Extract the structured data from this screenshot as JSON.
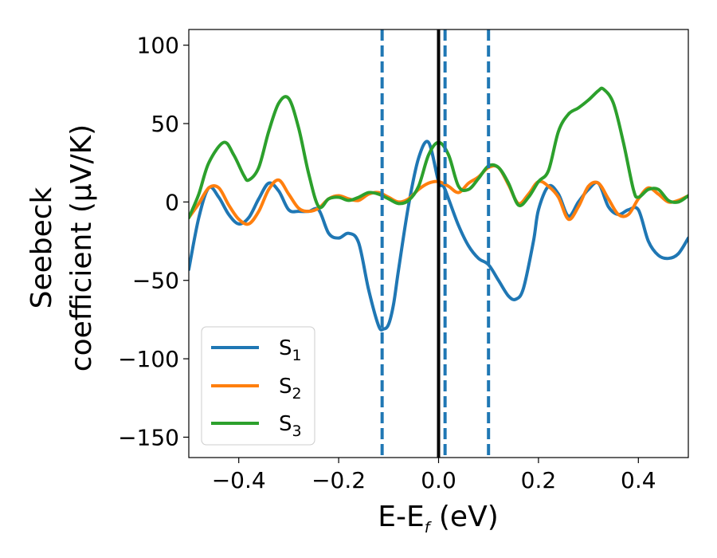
{
  "chart_data": {
    "type": "line",
    "xlabel_main": "E-E",
    "xlabel_sub": "f",
    "xlabel_unit": " (eV)",
    "ylabel_line1": "Seebeck",
    "ylabel_line2": "coefficient  (μV/K)",
    "xlim": [
      -0.5,
      0.5
    ],
    "ylim": [
      -163,
      110
    ],
    "xticks": [
      -0.4,
      -0.2,
      0.0,
      0.2,
      0.4
    ],
    "xtick_labels": [
      "−0.4",
      "−0.2",
      "0.0",
      "0.2",
      "0.4"
    ],
    "yticks": [
      100,
      50,
      0,
      -50,
      -100,
      -150
    ],
    "ytick_labels": [
      "100",
      "50",
      "0",
      "−50",
      "−100",
      "−150"
    ],
    "legend_position": "lower-left",
    "series": [
      {
        "name": "S",
        "subscript": "1",
        "color": "#1f77b4",
        "x": [
          -0.5,
          -0.48,
          -0.46,
          -0.44,
          -0.42,
          -0.4,
          -0.38,
          -0.36,
          -0.34,
          -0.32,
          -0.3,
          -0.28,
          -0.26,
          -0.24,
          -0.22,
          -0.2,
          -0.18,
          -0.16,
          -0.14,
          -0.12,
          -0.11,
          -0.1,
          -0.09,
          -0.08,
          -0.06,
          -0.04,
          -0.02,
          0.0,
          0.01,
          0.02,
          0.04,
          0.06,
          0.08,
          0.1,
          0.12,
          0.14,
          0.155,
          0.17,
          0.19,
          0.2,
          0.22,
          0.24,
          0.26,
          0.28,
          0.3,
          0.32,
          0.34,
          0.36,
          0.38,
          0.4,
          0.42,
          0.44,
          0.46,
          0.48,
          0.5
        ],
        "y": [
          -43,
          -10,
          9,
          3,
          -8,
          -14,
          -10,
          2,
          12,
          7,
          -5,
          -6,
          -6,
          -5,
          -20,
          -23,
          -20,
          -26,
          -56,
          -79,
          -81,
          -78,
          -65,
          -43,
          -2,
          28,
          38,
          13,
          10,
          2,
          -15,
          -28,
          -36,
          -40,
          -50,
          -60,
          -62,
          -55,
          -25,
          -5,
          10,
          5,
          -9,
          0,
          8,
          12,
          -3,
          -8,
          -5,
          -5,
          -25,
          -34,
          -36,
          -33,
          -23
        ]
      },
      {
        "name": "S",
        "subscript": "2",
        "color": "#ff7f0e",
        "x": [
          -0.5,
          -0.48,
          -0.46,
          -0.44,
          -0.42,
          -0.4,
          -0.38,
          -0.36,
          -0.34,
          -0.32,
          -0.3,
          -0.28,
          -0.26,
          -0.24,
          -0.22,
          -0.2,
          -0.18,
          -0.16,
          -0.14,
          -0.12,
          -0.1,
          -0.08,
          -0.06,
          -0.04,
          -0.02,
          0.0,
          0.02,
          0.04,
          0.06,
          0.08,
          0.1,
          0.12,
          0.14,
          0.16,
          0.18,
          0.2,
          0.22,
          0.24,
          0.26,
          0.28,
          0.3,
          0.32,
          0.34,
          0.36,
          0.38,
          0.4,
          0.42,
          0.44,
          0.46,
          0.48,
          0.5
        ],
        "y": [
          -10,
          -1,
          9,
          9,
          -2,
          -11,
          -14,
          -6,
          8,
          14,
          5,
          -4,
          -6,
          -4,
          2,
          4,
          2,
          1,
          5,
          6,
          3,
          0,
          2,
          8,
          12,
          13,
          10,
          6,
          12,
          16,
          22,
          22,
          11,
          -1,
          5,
          13,
          10,
          3,
          -11,
          -3,
          10,
          12,
          2,
          -8,
          -8,
          2,
          9,
          5,
          0,
          1,
          4
        ]
      },
      {
        "name": "S",
        "subscript": "3",
        "color": "#2ca02c",
        "x": [
          -0.5,
          -0.48,
          -0.46,
          -0.43,
          -0.41,
          -0.39,
          -0.38,
          -0.36,
          -0.34,
          -0.32,
          -0.3,
          -0.28,
          -0.26,
          -0.24,
          -0.22,
          -0.2,
          -0.18,
          -0.16,
          -0.14,
          -0.12,
          -0.1,
          -0.08,
          -0.06,
          -0.04,
          -0.02,
          0.0,
          0.02,
          0.04,
          0.06,
          0.08,
          0.1,
          0.12,
          0.14,
          0.16,
          0.18,
          0.2,
          0.22,
          0.24,
          0.26,
          0.28,
          0.3,
          0.32,
          0.33,
          0.35,
          0.37,
          0.39,
          0.4,
          0.42,
          0.44,
          0.46,
          0.48,
          0.5
        ],
        "y": [
          -10,
          5,
          25,
          38,
          30,
          17,
          14,
          22,
          45,
          63,
          66,
          47,
          18,
          -3,
          2,
          3,
          1,
          3,
          6,
          5,
          2,
          -1,
          1,
          10,
          30,
          38,
          30,
          10,
          8,
          15,
          23,
          22,
          12,
          -2,
          3,
          13,
          20,
          45,
          56,
          60,
          65,
          71,
          72,
          63,
          38,
          8,
          3,
          8,
          8,
          1,
          0,
          4
        ]
      }
    ],
    "vertical_lines": [
      {
        "x": 0.0,
        "style": "solid",
        "color": "#000000"
      },
      {
        "x": -0.113,
        "style": "dashed",
        "color": "#1f77b4"
      },
      {
        "x": 0.013,
        "style": "dashed",
        "color": "#1f77b4"
      },
      {
        "x": 0.1,
        "style": "dashed",
        "color": "#1f77b4"
      }
    ]
  }
}
